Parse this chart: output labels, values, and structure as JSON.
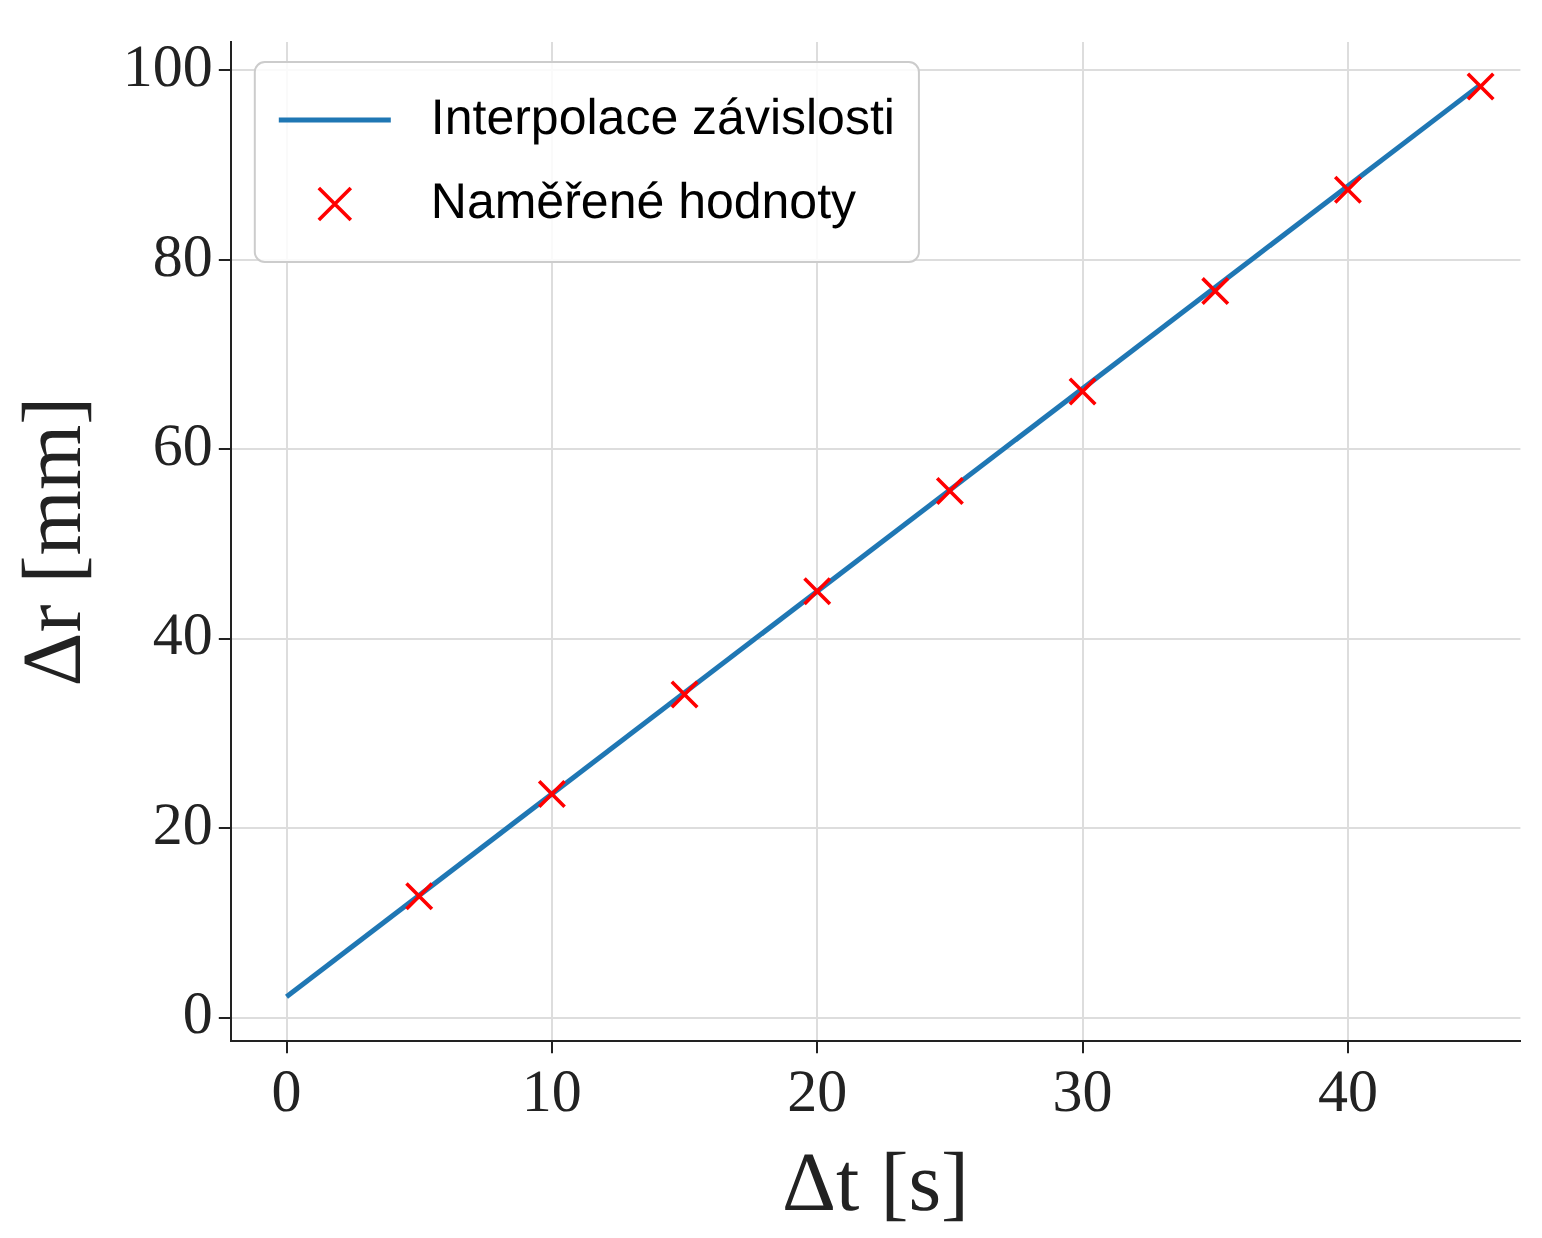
{
  "chart_data": {
    "type": "scatter",
    "xlabel": "Δt [s]",
    "ylabel": "Δr [mm]",
    "x": [
      5,
      10,
      15,
      20,
      25,
      30,
      35,
      40,
      45
    ],
    "series": [
      {
        "name": "Interpolace závislosti",
        "type": "line",
        "color": "#1f77b4",
        "x": [
          0,
          45
        ],
        "values": [
          2.2,
          98.5
        ]
      },
      {
        "name": "Naměřené hodnoty",
        "type": "scatter",
        "color": "#ff0000",
        "marker": "cross",
        "values": [
          12.8,
          23.6,
          34.1,
          45.0,
          55.6,
          66.1,
          76.7,
          87.4,
          98.3
        ]
      }
    ],
    "xlim": [
      -2.1,
      46.5
    ],
    "ylim": [
      -2.5,
      103
    ],
    "xticks": [
      0,
      10,
      20,
      30,
      40
    ],
    "yticks": [
      0,
      20,
      40,
      60,
      80,
      100
    ],
    "grid": true,
    "legend": "top left"
  }
}
